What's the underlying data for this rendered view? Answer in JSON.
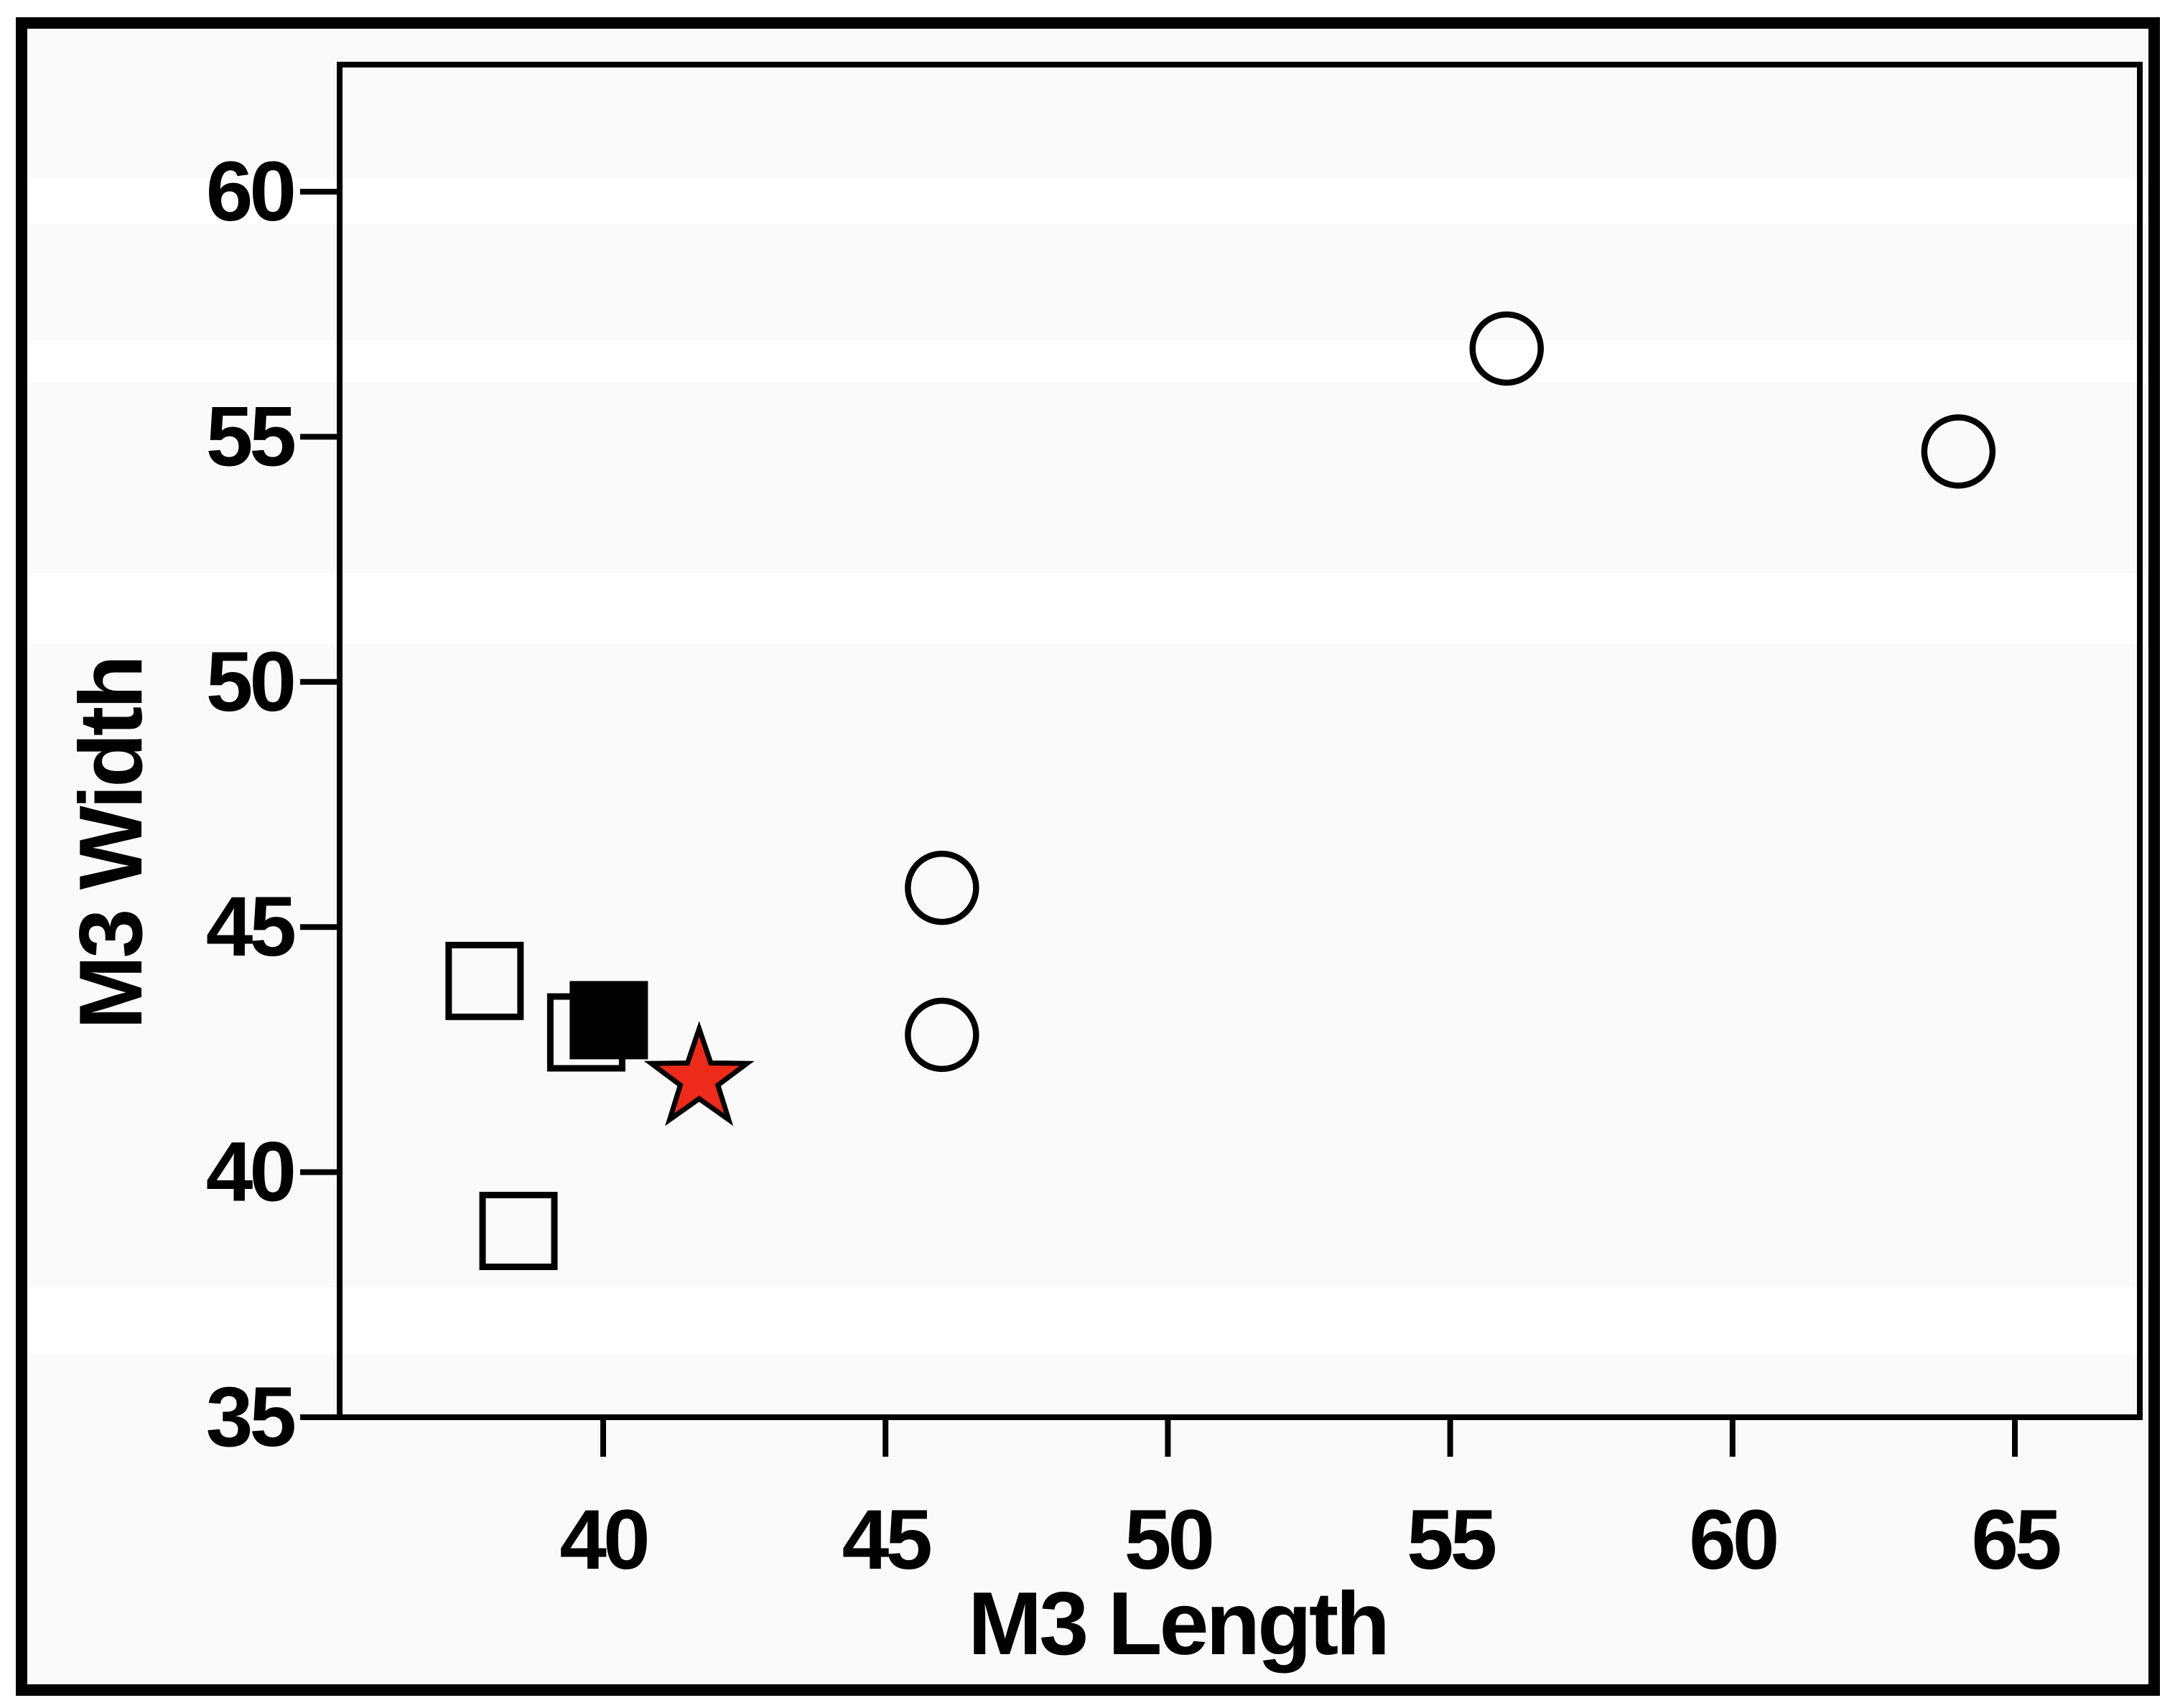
{
  "figure": {
    "background_color": "#ffffff",
    "stripe_base_color": "#fafafa",
    "stripe_gap_color": "#ffffff",
    "frame_color": "#000000",
    "border_color": "#000000",
    "text_color": "#000000"
  },
  "chart_data": {
    "type": "scatter",
    "title": "",
    "xlabel": "M3 Length",
    "ylabel": "M3 Width",
    "xlim": [
      35.3,
      67.2
    ],
    "ylim": [
      35,
      62.6
    ],
    "x_ticks": [
      40,
      45,
      50,
      55,
      60,
      65
    ],
    "y_ticks": [
      35,
      40,
      45,
      50,
      55,
      60
    ],
    "grid": "off",
    "legend": "none",
    "background_white_bands_y": [
      [
        59.35,
        60.27
      ],
      [
        56.12,
        56.97
      ],
      [
        50.77,
        52.22
      ],
      [
        36.27,
        37.65
      ]
    ],
    "series": [
      {
        "name": "open-square",
        "marker": "square",
        "fill": "none",
        "stroke": "#000000",
        "points": [
          [
            37.9,
            43.9
          ],
          [
            39.7,
            42.85
          ],
          [
            38.5,
            38.8
          ]
        ]
      },
      {
        "name": "filled-square",
        "marker": "square",
        "fill": "#000000",
        "stroke": "#000000",
        "points": [
          [
            40.1,
            43.1
          ]
        ]
      },
      {
        "name": "open-circle",
        "marker": "circle",
        "fill": "none",
        "stroke": "#000000",
        "points": [
          [
            56,
            56.8
          ],
          [
            64,
            54.7
          ],
          [
            46,
            45.8
          ],
          [
            46,
            42.8
          ]
        ]
      },
      {
        "name": "red-star",
        "marker": "star",
        "fill": "#ee2b1a",
        "stroke": "#000000",
        "points": [
          [
            41.7,
            41.9
          ]
        ]
      }
    ]
  }
}
